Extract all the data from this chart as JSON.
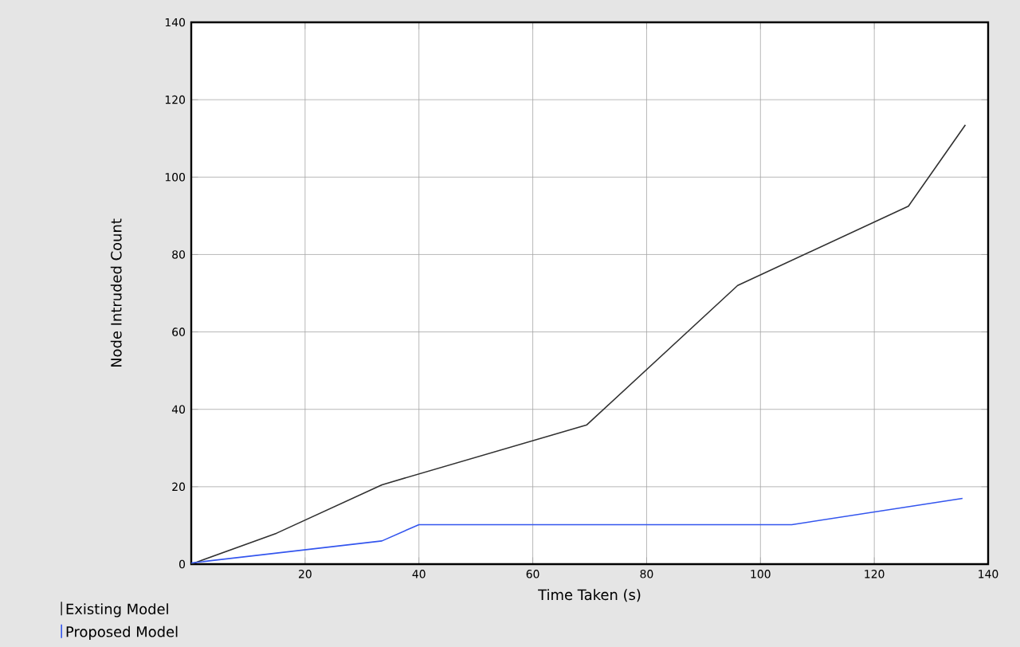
{
  "chart_data": {
    "type": "line",
    "xlabel": "Time Taken (s)",
    "ylabel": "Node Intruded Count",
    "xlim": [
      0,
      140
    ],
    "ylim": [
      0,
      140
    ],
    "xticks": [
      20,
      40,
      60,
      80,
      100,
      120,
      140
    ],
    "yticks": [
      0,
      20,
      40,
      60,
      80,
      100,
      120,
      140
    ],
    "grid": true,
    "legend": "bottom left",
    "marker": "none",
    "line_style": "solid",
    "series": [
      {
        "name": "Existing Model",
        "color": "#303030",
        "x": [
          0,
          15,
          33.5,
          69.5,
          96,
          126,
          136
        ],
        "values": [
          0,
          8,
          20.5,
          36,
          72,
          92.5,
          113.5
        ]
      },
      {
        "name": "Proposed Model",
        "color": "#3355ee",
        "x": [
          0,
          33.5,
          40,
          105.5,
          135.5
        ],
        "values": [
          0.3,
          6,
          10.2,
          10.2,
          17
        ]
      }
    ]
  }
}
